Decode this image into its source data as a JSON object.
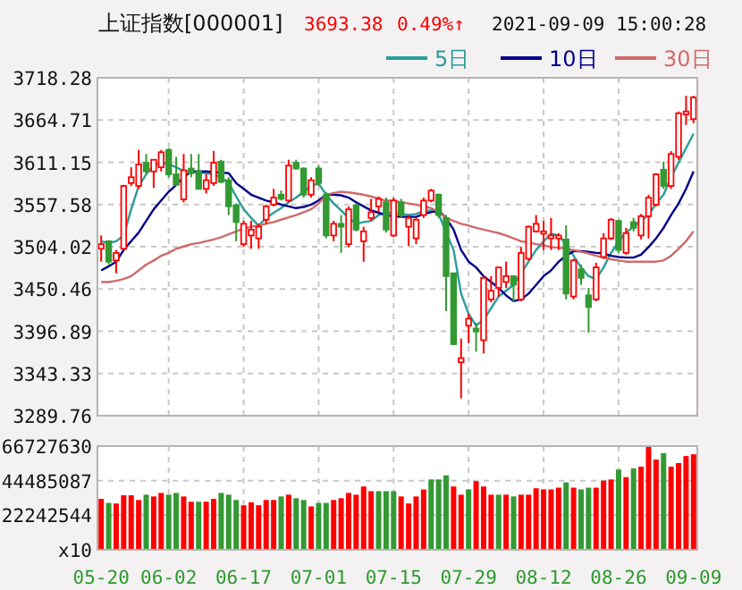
{
  "chart_data": [
    {
      "type": "candlestick",
      "title": "上证指数[000001]",
      "annotations": [
        "3693.38",
        "0.49%↑",
        "2021-09-09 15:00:28"
      ],
      "categories": [
        null,
        null,
        null,
        null,
        null,
        null,
        null,
        null,
        null,
        null,
        null,
        null,
        null,
        null,
        null,
        null,
        null,
        null,
        null,
        null,
        null,
        null,
        null,
        null,
        null,
        null,
        null,
        null,
        null,
        null,
        null,
        null,
        null,
        null,
        null,
        null,
        null,
        null,
        null,
        null,
        null,
        null,
        null,
        null,
        null,
        null,
        null,
        null,
        null,
        null,
        null,
        null,
        null,
        null,
        null,
        null,
        null,
        null,
        null,
        null,
        null,
        null,
        null,
        null,
        null,
        null,
        null,
        null,
        null,
        null,
        null,
        null,
        null,
        null,
        null,
        null,
        null,
        null,
        null,
        null
      ],
      "ohlc": [
        [
          3501.4,
          3518.3,
          3485.1,
          3507.3
        ],
        [
          3511.0,
          3512.4,
          3481.4,
          3485.0
        ],
        [
          3486.6,
          3499.9,
          3470.4,
          3496.2
        ],
        [
          3501.4,
          3582.5,
          3499.9,
          3581.1
        ],
        [
          3584.7,
          3604.7,
          3581.1,
          3592.1
        ],
        [
          3581.1,
          3626.8,
          3577.4,
          3608.4
        ],
        [
          3610.6,
          3621.6,
          3595.8,
          3599.5
        ],
        [
          3599.5,
          3614.3,
          3578.8,
          3614.3
        ],
        [
          3604.7,
          3626.8,
          3599.5,
          3623.8
        ],
        [
          3626.8,
          3629.0,
          3592.1,
          3595.8
        ],
        [
          3595.8,
          3618.0,
          3581.1,
          3582.5
        ],
        [
          3564.1,
          3621.6,
          3560.4,
          3601.0
        ],
        [
          3603.2,
          3621.6,
          3592.1,
          3597.3
        ],
        [
          3599.5,
          3621.6,
          3577.4,
          3577.4
        ],
        [
          3577.4,
          3595.8,
          3571.5,
          3588.4
        ],
        [
          3584.7,
          3625.3,
          3581.1,
          3610.6
        ],
        [
          3612.0,
          3614.3,
          3584.7,
          3586.2
        ],
        [
          3588.4,
          3592.1,
          3544.2,
          3555.2
        ],
        [
          3556.7,
          3558.9,
          3511.0,
          3535.3
        ],
        [
          3507.3,
          3536.8,
          3503.6,
          3533.1
        ],
        [
          3518.3,
          3536.8,
          3501.4,
          3525.7
        ],
        [
          3514.6,
          3533.1,
          3501.4,
          3529.4
        ],
        [
          3538.3,
          3557.4,
          3533.1,
          3555.2
        ],
        [
          3557.4,
          3577.4,
          3555.2,
          3566.3
        ],
        [
          3570.0,
          3575.2,
          3562.6,
          3564.8
        ],
        [
          3562.6,
          3614.3,
          3560.4,
          3606.9
        ],
        [
          3610.6,
          3614.3,
          3601.7,
          3603.2
        ],
        [
          3603.2,
          3604.7,
          3566.3,
          3570.0
        ],
        [
          3570.0,
          3592.1,
          3566.3,
          3588.4
        ],
        [
          3603.2,
          3606.9,
          3581.1,
          3584.7
        ],
        [
          3570.0,
          3573.7,
          3514.6,
          3518.3
        ],
        [
          3518.3,
          3536.8,
          3511.0,
          3533.1
        ],
        [
          3533.1,
          3544.2,
          3496.2,
          3529.4
        ],
        [
          3507.3,
          3555.2,
          3503.6,
          3551.5
        ],
        [
          3556.7,
          3558.9,
          3523.5,
          3525.7
        ],
        [
          3511.0,
          3529.4,
          3485.1,
          3523.5
        ],
        [
          3540.5,
          3564.8,
          3536.8,
          3547.9
        ],
        [
          3555.2,
          3567.8,
          3547.9,
          3564.8
        ],
        [
          3560.4,
          3566.3,
          3522.0,
          3525.7
        ],
        [
          3518.3,
          3566.3,
          3516.1,
          3562.6
        ],
        [
          3560.4,
          3564.8,
          3540.5,
          3544.2
        ],
        [
          3529.4,
          3544.2,
          3505.1,
          3540.5
        ],
        [
          3514.6,
          3540.5,
          3507.3,
          3538.3
        ],
        [
          3544.2,
          3566.3,
          3540.5,
          3562.6
        ],
        [
          3562.6,
          3577.4,
          3560.4,
          3575.2
        ],
        [
          3570.0,
          3571.5,
          3540.5,
          3544.2
        ],
        [
          3540.5,
          3544.2,
          3422.4,
          3466.7
        ],
        [
          3470.4,
          3470.4,
          3380.4,
          3380.4
        ],
        [
          3357.5,
          3387.7,
          3311.8,
          3362.7
        ],
        [
          3403.9,
          3418.7,
          3381.8,
          3412.8
        ],
        [
          3400.3,
          3407.6,
          3370.8,
          3396.6
        ],
        [
          3385.5,
          3466.7,
          3368.6,
          3464.5
        ],
        [
          3437.2,
          3466.7,
          3433.5,
          3448.2
        ],
        [
          3451.9,
          3477.8,
          3440.9,
          3477.8
        ],
        [
          3459.3,
          3485.1,
          3451.9,
          3466.7
        ],
        [
          3466.7,
          3466.7,
          3433.5,
          3455.6
        ],
        [
          3437.2,
          3503.6,
          3435.0,
          3496.2
        ],
        [
          3488.8,
          3530.9,
          3486.6,
          3529.4
        ],
        [
          3523.5,
          3544.2,
          3522.0,
          3533.1
        ],
        [
          3520.5,
          3536.8,
          3499.9,
          3523.5
        ],
        [
          3514.6,
          3540.5,
          3499.9,
          3518.3
        ],
        [
          3514.6,
          3521.3,
          3499.9,
          3518.3
        ],
        [
          3513.2,
          3530.9,
          3437.2,
          3444.6
        ],
        [
          3440.9,
          3488.8,
          3437.2,
          3486.6
        ],
        [
          3475.5,
          3481.4,
          3455.6,
          3464.5
        ],
        [
          3442.4,
          3451.9,
          3395.1,
          3427.6
        ],
        [
          3437.2,
          3483.7,
          3435.0,
          3477.8
        ],
        [
          3491.0,
          3521.3,
          3488.8,
          3514.6
        ],
        [
          3514.6,
          3540.5,
          3512.4,
          3538.3
        ],
        [
          3536.8,
          3538.3,
          3496.2,
          3499.9
        ],
        [
          3496.2,
          3527.9,
          3494.0,
          3521.3
        ],
        [
          3535.3,
          3540.5,
          3523.5,
          3527.9
        ],
        [
          3518.3,
          3545.6,
          3513.2,
          3542.7
        ],
        [
          3542.7,
          3570.0,
          3514.6,
          3566.3
        ],
        [
          3557.4,
          3597.3,
          3555.2,
          3595.8
        ],
        [
          3601.7,
          3612.0,
          3577.4,
          3581.1
        ],
        [
          3581.1,
          3625.3,
          3577.4,
          3621.6
        ],
        [
          3618.0,
          3675.5,
          3614.3,
          3673.3
        ],
        [
          3671.8,
          3695.4,
          3658.5,
          3675.5
        ],
        [
          3665.9,
          3695.4,
          3660.7,
          3693.4
        ]
      ],
      "series": [
        {
          "name": "5日",
          "type": "line",
          "color": "#2a9d9a",
          "values": [
            3511.0,
            3508.7,
            3511.0,
            3518.3,
            3551.5,
            3581.0,
            3595.8,
            3606.9,
            3610.6,
            3609.1,
            3604.7,
            3600.0,
            3599.5,
            3598.0,
            3597.2,
            3595.8,
            3592.1,
            3584.7,
            3567.8,
            3551.5,
            3540.5,
            3530.9,
            3540.5,
            3547.1,
            3553.0,
            3560.4,
            3566.3,
            3573.7,
            3581.0,
            3584.0,
            3570.0,
            3558.9,
            3550.1,
            3540.5,
            3533.1,
            3535.3,
            3536.8,
            3544.2,
            3547.9,
            3546.4,
            3545.6,
            3544.2,
            3545.6,
            3549.3,
            3550.1,
            3545.6,
            3522.0,
            3499.9,
            3444.6,
            3418.7,
            3404.0,
            3411.4,
            3426.1,
            3440.9,
            3448.2,
            3455.6,
            3470.4,
            3485.1,
            3499.9,
            3510.9,
            3520.5,
            3518.3,
            3507.3,
            3492.5,
            3477.8,
            3466.7,
            3463.0,
            3477.8,
            3496.2,
            3510.9,
            3522.0,
            3529.4,
            3536.8,
            3544.2,
            3558.9,
            3570.0,
            3592.1,
            3610.6,
            3629.0,
            3647.4
          ]
        },
        {
          "name": "10日",
          "type": "line",
          "color": "#00008b",
          "values": [
            3474.0,
            3479.2,
            3485.1,
            3499.9,
            3511.0,
            3522.0,
            3536.8,
            3551.5,
            3562.6,
            3573.7,
            3582.5,
            3592.1,
            3599.5,
            3599.5,
            3599.5,
            3598.7,
            3598.0,
            3597.2,
            3584.7,
            3577.4,
            3570.0,
            3566.3,
            3562.6,
            3560.4,
            3557.4,
            3555.2,
            3553.0,
            3554.5,
            3557.4,
            3562.6,
            3570.0,
            3570.0,
            3569.2,
            3566.3,
            3560.4,
            3555.2,
            3550.1,
            3547.1,
            3544.2,
            3542.7,
            3541.9,
            3541.9,
            3541.9,
            3545.6,
            3547.8,
            3550.1,
            3540.5,
            3525.7,
            3499.9,
            3485.1,
            3477.8,
            3466.7,
            3459.3,
            3451.9,
            3442.3,
            3435.0,
            3437.2,
            3444.6,
            3455.6,
            3466.7,
            3474.0,
            3485.1,
            3492.5,
            3498.4,
            3498.4,
            3497.7,
            3496.2,
            3495.5,
            3492.5,
            3491.0,
            3490.3,
            3490.3,
            3494.0,
            3503.6,
            3514.6,
            3527.9,
            3544.2,
            3558.9,
            3577.4,
            3599.5
          ]
        },
        {
          "name": "30日",
          "type": "line",
          "color": "#d06a6a",
          "values": [
            3459.3,
            3459.3,
            3460.8,
            3463.0,
            3466.7,
            3474.0,
            3481.4,
            3486.6,
            3492.5,
            3496.2,
            3501.4,
            3504.3,
            3507.3,
            3508.7,
            3511.0,
            3513.2,
            3516.1,
            3519.8,
            3523.5,
            3527.2,
            3529.4,
            3530.9,
            3533.1,
            3535.3,
            3538.3,
            3541.2,
            3544.2,
            3547.9,
            3551.5,
            3558.9,
            3570.0,
            3572.2,
            3573.7,
            3572.9,
            3571.5,
            3570.0,
            3567.8,
            3564.8,
            3562.6,
            3561.9,
            3560.4,
            3558.9,
            3557.4,
            3555.2,
            3553.0,
            3547.9,
            3540.5,
            3536.8,
            3533.1,
            3530.9,
            3527.9,
            3525.7,
            3523.5,
            3521.3,
            3518.3,
            3514.6,
            3511.0,
            3509.5,
            3507.3,
            3505.8,
            3503.6,
            3502.8,
            3501.4,
            3499.9,
            3497.7,
            3495.5,
            3492.5,
            3490.3,
            3488.1,
            3486.6,
            3485.1,
            3485.1,
            3485.1,
            3485.1,
            3485.1,
            3486.6,
            3492.5,
            3501.4,
            3511.0,
            3523.5
          ]
        }
      ],
      "ylim": [
        3289.76,
        3718.28
      ],
      "yticks": [
        3718.28,
        3664.71,
        3611.15,
        3557.58,
        3504.02,
        3450.46,
        3396.89,
        3343.33,
        3289.76
      ],
      "grid": true,
      "legend": "top right",
      "tick_labels": "y"
    },
    {
      "type": "bar",
      "categories": [
        "05-20",
        null,
        null,
        null,
        null,
        null,
        null,
        null,
        null,
        "06-02",
        null,
        null,
        null,
        null,
        null,
        null,
        null,
        null,
        null,
        "06-17",
        null,
        null,
        null,
        null,
        null,
        null,
        null,
        null,
        null,
        "07-01",
        null,
        null,
        null,
        null,
        null,
        null,
        null,
        null,
        null,
        "07-15",
        null,
        null,
        null,
        null,
        null,
        null,
        null,
        null,
        null,
        "07-29",
        null,
        null,
        null,
        null,
        null,
        null,
        null,
        null,
        null,
        "08-12",
        null,
        null,
        null,
        null,
        null,
        null,
        null,
        null,
        null,
        "08-26",
        null,
        null,
        null,
        null,
        null,
        null,
        null,
        null,
        null,
        "09-09"
      ],
      "values": [
        32800000,
        30160000,
        29780000,
        35060000,
        35060000,
        32040000,
        35440000,
        34310000,
        36570000,
        35440000,
        36570000,
        34310000,
        30910000,
        30910000,
        30910000,
        32800000,
        36570000,
        35440000,
        32040000,
        28650000,
        30540000,
        28650000,
        32040000,
        32040000,
        34310000,
        35440000,
        33180000,
        32040000,
        27900000,
        30160000,
        30160000,
        32040000,
        33180000,
        36570000,
        35440000,
        40720000,
        37700000,
        37700000,
        37700000,
        37700000,
        34310000,
        29780000,
        34310000,
        38830000,
        45240000,
        45240000,
        47880000,
        40720000,
        35440000,
        38830000,
        44110000,
        40720000,
        35440000,
        35440000,
        35440000,
        34310000,
        35440000,
        35440000,
        39580000,
        38830000,
        38830000,
        39960000,
        43350000,
        39960000,
        38830000,
        39960000,
        39960000,
        44490000,
        45240000,
        51650000,
        46750000,
        52400000,
        53530000,
        66727630,
        58060000,
        62200000,
        53530000,
        55790000,
        60320000,
        61450000
      ],
      "colors": [
        "#ff0000",
        "#339933",
        "#ff0000",
        "#ff0000",
        "#ff0000",
        "#ff0000",
        "#339933",
        "#ff0000",
        "#ff0000",
        "#339933",
        "#339933",
        "#ff0000",
        "#ff0000",
        "#339933",
        "#ff0000",
        "#ff0000",
        "#339933",
        "#339933",
        "#339933",
        "#ff0000",
        "#ff0000",
        "#ff0000",
        "#ff0000",
        "#ff0000",
        "#339933",
        "#ff0000",
        "#339933",
        "#339933",
        "#ff0000",
        "#339933",
        "#339933",
        "#ff0000",
        "#ff0000",
        "#ff0000",
        "#ff0000",
        "#ff0000",
        "#ff0000",
        "#339933",
        "#339933",
        "#339933",
        "#ff0000",
        "#ff0000",
        "#ff0000",
        "#ff0000",
        "#339933",
        "#339933",
        "#339933",
        "#ff0000",
        "#ff0000",
        "#339933",
        "#ff0000",
        "#ff0000",
        "#ff0000",
        "#339933",
        "#ff0000",
        "#339933",
        "#ff0000",
        "#ff0000",
        "#ff0000",
        "#ff0000",
        "#ff0000",
        "#ff0000",
        "#339933",
        "#ff0000",
        "#339933",
        "#339933",
        "#ff0000",
        "#ff0000",
        "#ff0000",
        "#339933",
        "#ff0000",
        "#339933",
        "#ff0000",
        "#ff0000",
        "#ff0000",
        "#339933",
        "#ff0000",
        "#ff0000",
        "#ff0000",
        "#ff0000"
      ],
      "ylim": [
        0,
        66727630
      ],
      "yticks": [
        66727630,
        44485087,
        22242544,
        {
          "value": 0,
          "label": "x10"
        }
      ],
      "grid": true
    }
  ]
}
